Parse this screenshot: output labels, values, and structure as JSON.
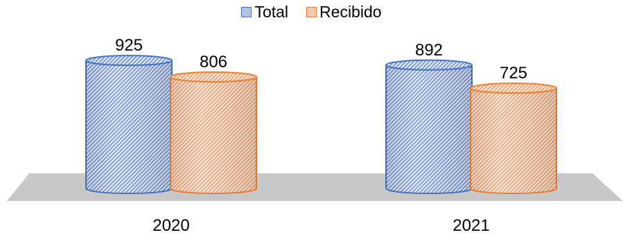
{
  "chart_data": {
    "type": "bar",
    "categories": [
      "2020",
      "2021"
    ],
    "series": [
      {
        "name": "Total",
        "values": [
          925,
          892
        ],
        "color": "#4472C4"
      },
      {
        "name": "Recibido",
        "values": [
          806,
          725
        ],
        "color": "#ED7D31"
      }
    ],
    "legend": "top-center",
    "grid": false,
    "style": "3d-cylinder-hatched"
  }
}
